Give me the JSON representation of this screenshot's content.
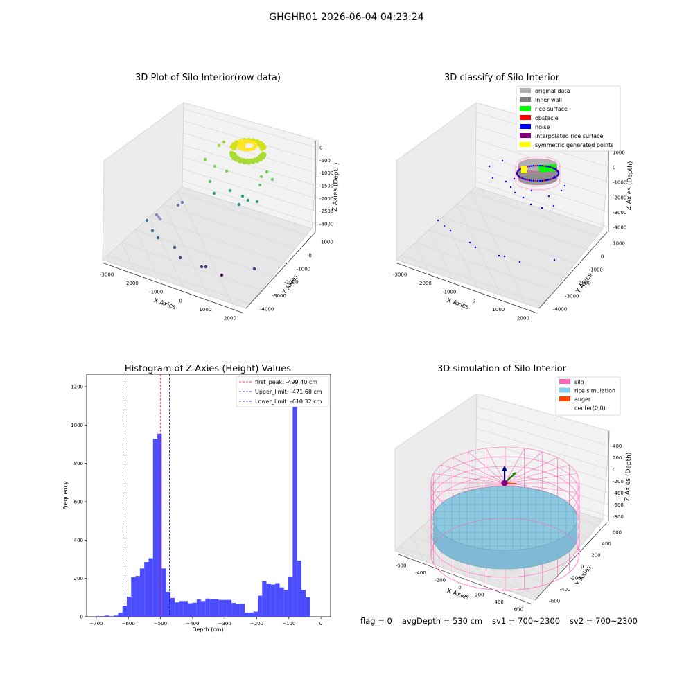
{
  "suptitle": "GHGHR01 2026-06-04 04:23:24",
  "footer": {
    "flag": "flag = 0",
    "avg_depth": "avgDepth = 530 cm",
    "sv1": "sv1 = 700~2300",
    "sv2": "sv2 = 700~2300"
  },
  "chart_data": [
    {
      "type": "scatter",
      "title": "3D Plot of Silo Interior(row data)",
      "xlabel": "X Axies",
      "ylabel": "Y Axies",
      "zlabel": "Z Axies (Depth)",
      "xticks": [
        "-3000",
        "-2000",
        "-1000",
        "0",
        "1000",
        "2000"
      ],
      "yticks": [
        "1000",
        "0",
        "-1000",
        "-2000",
        "-3000",
        "-4000"
      ],
      "zticks": [
        "0",
        "-500",
        "-1000",
        "-1500",
        "-2000",
        "-2500",
        "-3000"
      ],
      "xlim": [
        -3500,
        2300
      ],
      "ylim": [
        -4300,
        1200
      ],
      "zlim": [
        -3300,
        200
      ],
      "colormap": "viridis (by depth)"
    },
    {
      "type": "scatter",
      "title": "3D classify of Silo Interior",
      "xlabel": "X Axies",
      "ylabel": "Y Axies",
      "zlabel": "Z Axies (Depth)",
      "xticks": [
        "-3000",
        "-2000",
        "-1000",
        "0",
        "1000",
        "2000"
      ],
      "yticks": [
        "1000",
        "0",
        "-1000",
        "-2000",
        "-3000",
        "-4000"
      ],
      "zticks": [
        "1000",
        "0",
        "-1000",
        "-2000",
        "-3000",
        "-4000"
      ],
      "legend_position": "top-right",
      "legend": [
        {
          "label": "original data",
          "color": "#b3b3b3"
        },
        {
          "label": "inner wall",
          "color": "#808080"
        },
        {
          "label": "rice surface",
          "color": "#00ff00"
        },
        {
          "label": "obstacle",
          "color": "#ff0000"
        },
        {
          "label": "noise",
          "color": "#0000ff"
        },
        {
          "label": "interpolated rice surface",
          "color": "#800080"
        },
        {
          "label": "symmetric generated points",
          "color": "#ffff00"
        }
      ]
    },
    {
      "type": "bar",
      "title": "Histogram of Z-Axies (Height) Values",
      "xlabel": "Depth (cm)",
      "ylabel": "Frequency",
      "xlim": [
        -730,
        30
      ],
      "ylim": [
        0,
        1265
      ],
      "xticks": [
        -700,
        -600,
        -500,
        -400,
        -300,
        -200,
        -100,
        0
      ],
      "yticks": [
        0,
        200,
        400,
        600,
        800,
        1000,
        1200
      ],
      "bar_color": "#4c4cff",
      "bin_width": 13.6,
      "bins": [
        {
          "left": -700,
          "value": 3
        },
        {
          "left": -686.4,
          "value": 3
        },
        {
          "left": -672.8,
          "value": 6
        },
        {
          "left": -659.2,
          "value": 3
        },
        {
          "left": -645.6,
          "value": 6
        },
        {
          "left": -632,
          "value": 22
        },
        {
          "left": -618.4,
          "value": 57
        },
        {
          "left": -604.8,
          "value": 105
        },
        {
          "left": -591.2,
          "value": 207
        },
        {
          "left": -577.6,
          "value": 213
        },
        {
          "left": -564,
          "value": 252
        },
        {
          "left": -550.4,
          "value": 285
        },
        {
          "left": -536.8,
          "value": 305
        },
        {
          "left": -523.2,
          "value": 928
        },
        {
          "left": -509.6,
          "value": 955
        },
        {
          "left": -496,
          "value": 252
        },
        {
          "left": -482.4,
          "value": 130
        },
        {
          "left": -468.8,
          "value": 98
        },
        {
          "left": -455.2,
          "value": 75
        },
        {
          "left": -441.6,
          "value": 82
        },
        {
          "left": -428,
          "value": 82
        },
        {
          "left": -414.4,
          "value": 70
        },
        {
          "left": -400.8,
          "value": 73
        },
        {
          "left": -387.2,
          "value": 90
        },
        {
          "left": -373.6,
          "value": 82
        },
        {
          "left": -360,
          "value": 95
        },
        {
          "left": -346.4,
          "value": 92
        },
        {
          "left": -332.8,
          "value": 92
        },
        {
          "left": -319.2,
          "value": 88
        },
        {
          "left": -305.6,
          "value": 88
        },
        {
          "left": -292,
          "value": 88
        },
        {
          "left": -278.4,
          "value": 72
        },
        {
          "left": -264.8,
          "value": 65
        },
        {
          "left": -251.2,
          "value": 67
        },
        {
          "left": -237.6,
          "value": 22
        },
        {
          "left": -224,
          "value": 22
        },
        {
          "left": -210.4,
          "value": 27
        },
        {
          "left": -196.8,
          "value": 110
        },
        {
          "left": -183.2,
          "value": 186
        },
        {
          "left": -169.6,
          "value": 172
        },
        {
          "left": -156,
          "value": 168
        },
        {
          "left": -142.4,
          "value": 175
        },
        {
          "left": -128.8,
          "value": 153
        },
        {
          "left": -115.2,
          "value": 140
        },
        {
          "left": -101.6,
          "value": 210
        },
        {
          "left": -88,
          "value": 1198
        },
        {
          "left": -74.4,
          "value": 293
        },
        {
          "left": -60.8,
          "value": 140
        },
        {
          "left": -47.2,
          "value": 102
        }
      ],
      "vlines": [
        {
          "label": "first_peak: -499.40 cm",
          "x": -499.4,
          "color": "#ff0000"
        },
        {
          "label": "Upper_limit: -471.68 cm",
          "x": -471.68,
          "color": "#0000cc"
        },
        {
          "label": "Lower_limit: -610.32 cm",
          "x": -610.32,
          "color": "#0000cc"
        }
      ],
      "legend_position": "top-right"
    },
    {
      "type": "surface",
      "title": "3D simulation of Silo Interior",
      "xlabel": "X Axies",
      "ylabel": "Y Axies",
      "zlabel": "Z Axies (Depth)",
      "xticks": [
        "-600",
        "-400",
        "-200",
        "0",
        "200",
        "400",
        "600"
      ],
      "yticks": [
        "600",
        "400",
        "200",
        "0",
        "-200",
        "-400",
        "-600"
      ],
      "zticks": [
        "400",
        "200",
        "0",
        "-200",
        "-400",
        "-600",
        "-800"
      ],
      "legend_position": "top-right",
      "legend": [
        {
          "label": "silo",
          "color": "#ff69b4"
        },
        {
          "label": "rice simulation",
          "color": "#87ceeb"
        },
        {
          "label": "auger",
          "color": "#ff4500"
        },
        {
          "label": "center(0,0)",
          "color": ""
        }
      ]
    }
  ]
}
